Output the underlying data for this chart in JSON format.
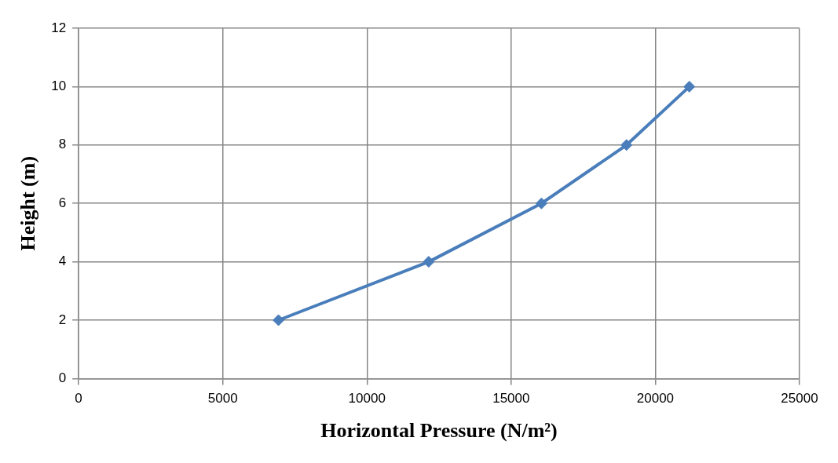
{
  "chart_data": {
    "type": "line",
    "xlabel": "Horizontal Pressure (N/m²)",
    "ylabel": "Height (m)",
    "x": [
      6930,
      12140,
      16050,
      19000,
      21180
    ],
    "series": [
      {
        "color": "#4a7ebb",
        "values": [
          2,
          4,
          6,
          8,
          10
        ]
      }
    ],
    "xlim": [
      0,
      25000
    ],
    "xticks": [
      0,
      5000,
      10000,
      15000,
      20000,
      25000
    ],
    "ylim": [
      0,
      12
    ],
    "yticks": [
      0,
      2,
      4,
      6,
      8,
      10,
      12
    ],
    "grid": true,
    "marker": "diamond",
    "line_style": "solid"
  }
}
